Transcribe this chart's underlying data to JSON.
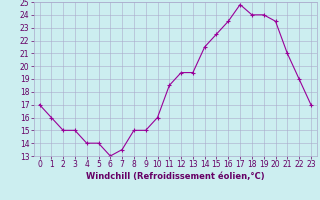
{
  "hours": [
    0,
    1,
    2,
    3,
    4,
    5,
    6,
    7,
    8,
    9,
    10,
    11,
    12,
    13,
    14,
    15,
    16,
    17,
    18,
    19,
    20,
    21,
    22,
    23
  ],
  "values": [
    17,
    16,
    15,
    15,
    14,
    14,
    13,
    13.5,
    15,
    15,
    16,
    18.5,
    19.5,
    19.5,
    21.5,
    22.5,
    23.5,
    24.8,
    24.0,
    24.0,
    23.5,
    21,
    19,
    17
  ],
  "line_color": "#990099",
  "marker": "+",
  "bg_color": "#cceef0",
  "grid_color": "#aaaacc",
  "xlabel": "Windchill (Refroidissement éolien,°C)",
  "ylim": [
    13,
    25
  ],
  "xlim": [
    -0.5,
    23.5
  ],
  "yticks": [
    13,
    14,
    15,
    16,
    17,
    18,
    19,
    20,
    21,
    22,
    23,
    24,
    25
  ],
  "xticks": [
    0,
    1,
    2,
    3,
    4,
    5,
    6,
    7,
    8,
    9,
    10,
    11,
    12,
    13,
    14,
    15,
    16,
    17,
    18,
    19,
    20,
    21,
    22,
    23
  ],
  "tick_color": "#660066",
  "label_fontsize": 6.0,
  "tick_fontsize": 5.5,
  "linewidth": 0.8,
  "markersize": 3.5
}
